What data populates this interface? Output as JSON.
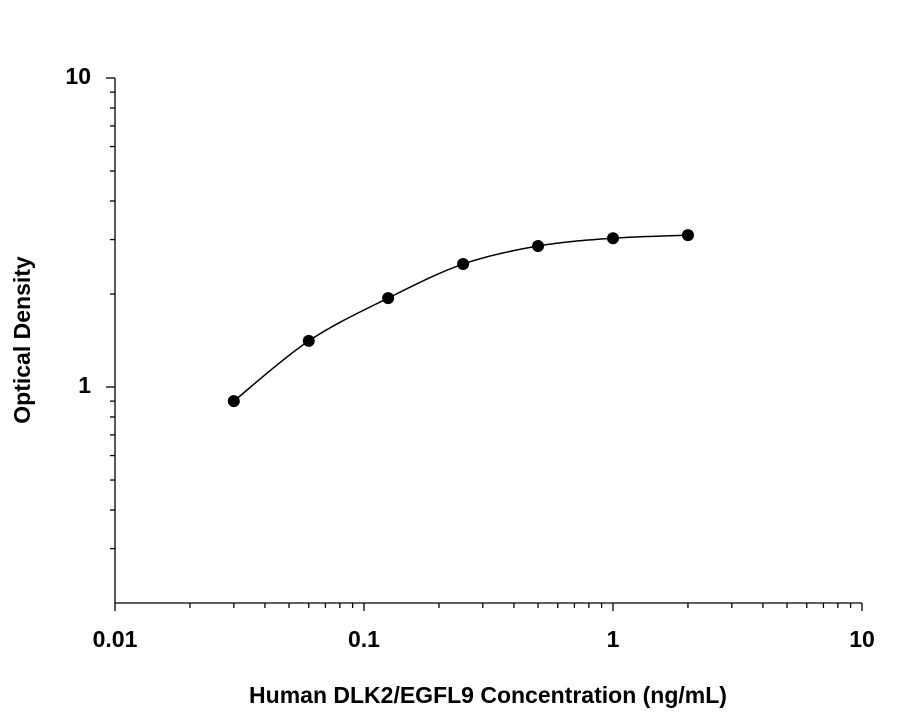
{
  "chart_data": {
    "type": "scatter",
    "log_x": true,
    "log_y": true,
    "x_label": "Human DLK2/EGFL9 Concentration (ng/mL)",
    "y_label": "Optical Density",
    "x": [
      0.03,
      0.06,
      0.125,
      0.25,
      0.5,
      1,
      2
    ],
    "series": [
      {
        "color": "#000000",
        "values": [
          0.9,
          1.41,
          1.94,
          2.5,
          2.86,
          3.03,
          3.1
        ]
      }
    ],
    "curve": true,
    "xlim": [
      0.01,
      10
    ],
    "ylim": [
      0.2,
      10
    ],
    "xticks": [
      0.01,
      0.1,
      1,
      10
    ],
    "yticks": [
      1,
      10
    ],
    "xminorticks": [
      0.02,
      0.03,
      0.04,
      0.05,
      0.06,
      0.07,
      0.08,
      0.09,
      0.2,
      0.3,
      0.4,
      0.5,
      0.6,
      0.7,
      0.8,
      0.9,
      2,
      3,
      4,
      5,
      6,
      7,
      8,
      9
    ],
    "yminorticks": [
      0.3,
      0.4,
      0.5,
      0.6,
      0.7,
      0.8,
      0.9,
      2,
      3,
      4,
      5,
      6,
      7,
      8,
      9
    ]
  }
}
